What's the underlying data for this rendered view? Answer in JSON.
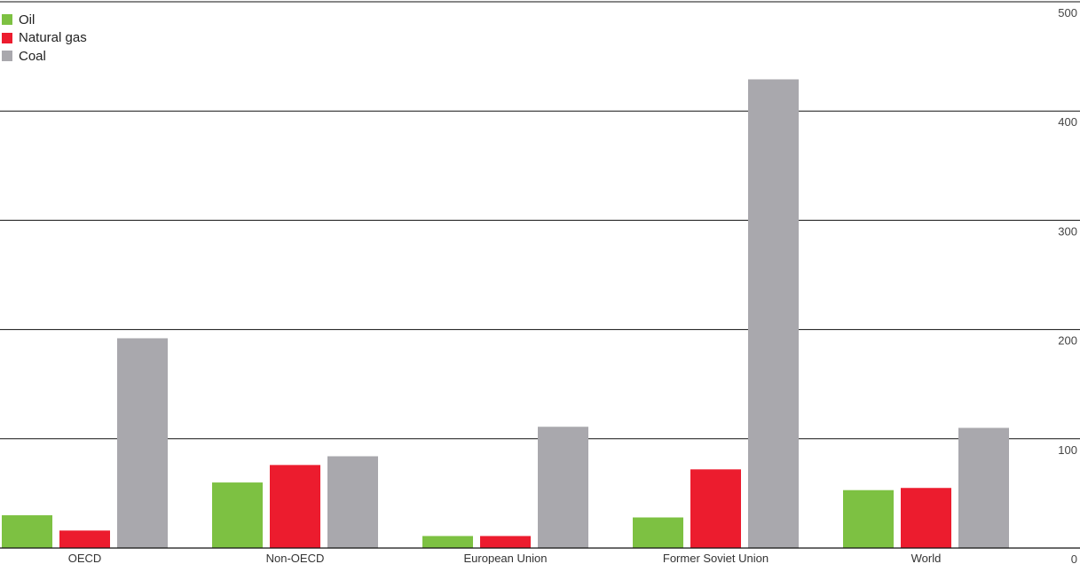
{
  "chart_data": {
    "type": "bar",
    "categories": [
      "OECD",
      "Non-OECD",
      "European Union",
      "Former Soviet Union",
      "World"
    ],
    "series": [
      {
        "name": "Oil",
        "color": "#7dc142",
        "values": [
          30,
          60,
          11,
          28,
          53
        ]
      },
      {
        "name": "Natural gas",
        "color": "#ec1c2e",
        "values": [
          16,
          76,
          11,
          72,
          55
        ]
      },
      {
        "name": "Coal",
        "color": "#a9a8ad",
        "values": [
          192,
          84,
          111,
          429,
          110
        ]
      }
    ],
    "ylim": [
      0,
      500
    ],
    "yticks": [
      "0",
      "100",
      "200",
      "300",
      "400",
      "500"
    ],
    "y_axis_position": "right",
    "grid": true,
    "legend_position": "top-left",
    "title": "",
    "xlabel": "",
    "ylabel": ""
  }
}
